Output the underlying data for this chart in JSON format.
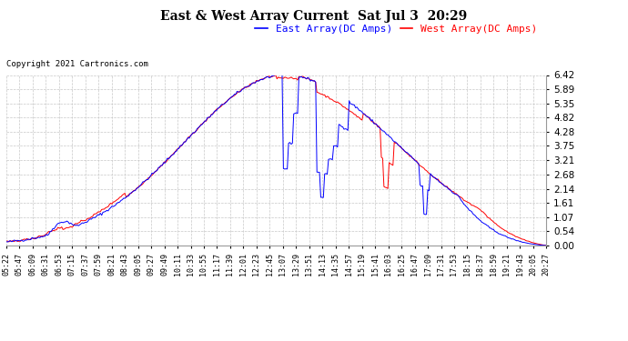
{
  "title": "East & West Array Current  Sat Jul 3  20:29",
  "copyright": "Copyright 2021 Cartronics.com",
  "legend_east": "East Array(DC Amps)",
  "legend_west": "West Array(DC Amps)",
  "east_color": "#0000ff",
  "west_color": "#ff0000",
  "background_color": "#ffffff",
  "grid_color": "#c8c8c8",
  "yticks": [
    0.0,
    0.54,
    1.07,
    1.61,
    2.14,
    2.68,
    3.21,
    3.75,
    4.28,
    4.82,
    5.35,
    5.89,
    6.42
  ],
  "ymax": 6.42,
  "ymin": 0.0,
  "xtick_labels": [
    "05:22",
    "05:47",
    "06:09",
    "06:31",
    "06:53",
    "07:15",
    "07:37",
    "07:59",
    "08:21",
    "08:43",
    "09:05",
    "09:27",
    "09:49",
    "10:11",
    "10:33",
    "10:55",
    "11:17",
    "11:39",
    "12:01",
    "12:23",
    "12:45",
    "13:07",
    "13:29",
    "13:51",
    "14:13",
    "14:35",
    "14:57",
    "15:19",
    "15:41",
    "16:03",
    "16:25",
    "16:47",
    "17:09",
    "17:31",
    "17:53",
    "18:15",
    "18:37",
    "18:59",
    "19:21",
    "19:43",
    "20:05",
    "20:27"
  ]
}
